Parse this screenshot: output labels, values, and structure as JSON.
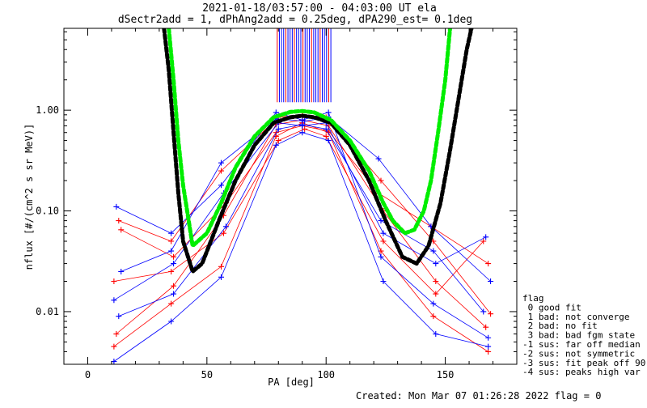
{
  "chart_data": {
    "type": "line",
    "title_line1": "2021-01-18/03:57:00 - 04:03:00 UT ela",
    "title_line2": "dSectr2add = 1, dPhAng2add = 0.25deg, dPA290_est=   0.1deg",
    "xlabel": "PA [deg]",
    "ylabel": "nflux [#/(cm^2 s sr MeV)]",
    "x_scale": "linear",
    "y_scale": "log",
    "xlim": [
      -10,
      180
    ],
    "ylim": [
      0.003,
      6.5
    ],
    "x_ticks": [
      {
        "value": 0,
        "label": "0"
      },
      {
        "value": 50,
        "label": "50"
      },
      {
        "value": 100,
        "label": "100"
      },
      {
        "value": 150,
        "label": "150"
      }
    ],
    "y_ticks": [
      {
        "value": 0.01,
        "label": "0.01"
      },
      {
        "value": 0.1,
        "label": "0.10"
      },
      {
        "value": 1.0,
        "label": "1.00"
      }
    ],
    "grid": false,
    "colors": {
      "red": "#ff0000",
      "blue": "#0000ff",
      "black_fit": "#000000",
      "green_fit": "#00ee00"
    },
    "series": [
      {
        "color": "red",
        "style": "thin line with + markers",
        "x": [
          11,
          35,
          56,
          79,
          90,
          101,
          123,
          145,
          168
        ],
        "y": [
          0.0045,
          0.012,
          0.028,
          0.55,
          0.75,
          0.6,
          0.04,
          0.009,
          0.004
        ]
      },
      {
        "color": "red",
        "style": "thin line with + markers",
        "x": [
          12,
          36,
          57,
          79,
          90,
          101,
          124,
          146,
          167
        ],
        "y": [
          0.006,
          0.018,
          0.09,
          0.72,
          0.8,
          0.7,
          0.1,
          0.02,
          0.007
        ]
      },
      {
        "color": "red",
        "style": "thin line with + markers",
        "x": [
          13,
          35,
          56,
          80,
          90,
          100,
          123,
          145,
          169
        ],
        "y": [
          0.08,
          0.05,
          0.25,
          0.85,
          0.9,
          0.85,
          0.2,
          0.05,
          0.0095
        ]
      },
      {
        "color": "red",
        "style": "thin line with + markers",
        "x": [
          14,
          36,
          58,
          79,
          90,
          101,
          122,
          144,
          168
        ],
        "y": [
          0.065,
          0.035,
          0.12,
          0.6,
          0.7,
          0.62,
          0.15,
          0.07,
          0.03
        ]
      },
      {
        "color": "red",
        "style": "thin line with + markers",
        "x": [
          11,
          35,
          57,
          80,
          91,
          100,
          124,
          146,
          166
        ],
        "y": [
          0.02,
          0.025,
          0.06,
          0.5,
          0.65,
          0.55,
          0.05,
          0.015,
          0.05
        ]
      },
      {
        "color": "blue",
        "style": "thin line with + markers",
        "x": [
          12,
          35,
          56,
          79,
          90,
          101,
          123,
          145,
          168
        ],
        "y": [
          0.11,
          0.06,
          0.18,
          0.95,
          0.8,
          0.95,
          0.035,
          0.012,
          0.0055
        ]
      },
      {
        "color": "blue",
        "style": "thin line with + markers",
        "x": [
          11,
          36,
          57,
          80,
          90,
          100,
          124,
          146,
          167
        ],
        "y": [
          0.013,
          0.03,
          0.15,
          0.75,
          0.7,
          0.75,
          0.06,
          0.03,
          0.055
        ]
      },
      {
        "color": "blue",
        "style": "thin line with + markers",
        "x": [
          14,
          35,
          56,
          79,
          91,
          101,
          122,
          144,
          169
        ],
        "y": [
          0.025,
          0.04,
          0.3,
          0.82,
          0.78,
          0.85,
          0.33,
          0.07,
          0.02
        ]
      },
      {
        "color": "blue",
        "style": "thin line with + markers",
        "x": [
          13,
          36,
          58,
          80,
          90,
          100,
          123,
          145,
          166
        ],
        "y": [
          0.009,
          0.015,
          0.07,
          0.65,
          0.72,
          0.65,
          0.08,
          0.04,
          0.01
        ]
      },
      {
        "color": "blue",
        "style": "thin line with + markers",
        "x": [
          11,
          35,
          56,
          79,
          90,
          101,
          124,
          146,
          168
        ],
        "y": [
          0.0032,
          0.008,
          0.022,
          0.45,
          0.6,
          0.5,
          0.02,
          0.006,
          0.0045
        ]
      },
      {
        "color": "black_fit",
        "style": "thick dashed fit curve",
        "x": [
          32,
          34,
          36,
          38,
          40,
          44,
          48,
          55,
          62,
          70,
          78,
          85,
          90,
          95,
          102,
          110,
          118,
          125,
          132,
          138,
          143,
          148,
          152,
          156,
          159,
          161
        ],
        "y": [
          6.5,
          2.5,
          0.6,
          0.15,
          0.05,
          0.025,
          0.03,
          0.08,
          0.2,
          0.45,
          0.75,
          0.85,
          0.88,
          0.85,
          0.75,
          0.45,
          0.2,
          0.08,
          0.035,
          0.03,
          0.045,
          0.12,
          0.4,
          1.5,
          4.0,
          6.5
        ]
      },
      {
        "color": "green_fit",
        "style": "thick dashed fit curve",
        "x": [
          34,
          36,
          38,
          40,
          44,
          50,
          56,
          62,
          70,
          78,
          85,
          90,
          95,
          102,
          110,
          118,
          124,
          128,
          133,
          137,
          141,
          144,
          147,
          150,
          152
        ],
        "y": [
          6.5,
          2.0,
          0.5,
          0.18,
          0.045,
          0.06,
          0.12,
          0.27,
          0.55,
          0.85,
          0.96,
          0.98,
          0.95,
          0.8,
          0.5,
          0.25,
          0.12,
          0.08,
          0.06,
          0.065,
          0.1,
          0.2,
          0.6,
          2.0,
          6.5
        ]
      }
    ],
    "legend": {
      "position": "right of plot, bottom",
      "entries": [
        "flag",
        " 0 good fit",
        " 1 bad: not converge",
        " 2 bad: no fit",
        " 3 bad: bad fgm state",
        "-1 sus: far off median",
        "-2 sus: not symmetric",
        "-3 sus: fit peak off 90",
        "-4 sus: peaks high var"
      ]
    },
    "footer": "Created: Mon Mar 07 01:26:28 2022   flag = 0"
  }
}
